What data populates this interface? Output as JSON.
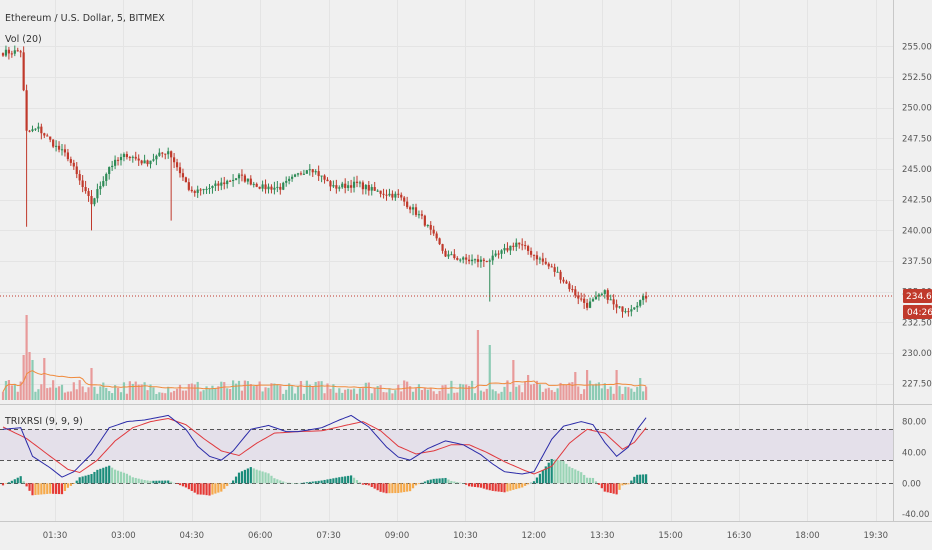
{
  "symbol_title": "Ethereum / U.S. Dollar, 5, BITMEX",
  "volume_label": "Vol (20)",
  "osc_label": "TRIXRSI (9, 9, 9)",
  "colors": {
    "up": "#2e8b57",
    "down": "#c0392b",
    "vol_up": "#8ccbb4",
    "vol_down": "#e89a9a",
    "vol_ma": "#f08a3c",
    "fast_line": "#2b2ba8",
    "slow_line": "#e0393e",
    "hist_up_strong": "#1a8c7a",
    "hist_up_weak": "#99d4b5",
    "hist_down_strong": "#e53935",
    "hist_down_weak": "#f6a94a",
    "price_line": "#c0392b",
    "band_fill": "#e4e0ea"
  },
  "current_price": {
    "value": "234.65",
    "countdown": "04:26"
  },
  "chart_data": [
    {
      "type": "candlestick",
      "title": "Ethereum / U.S. Dollar, 5, BITMEX",
      "x_ticks": [
        "01:30",
        "03:00",
        "04:30",
        "06:00",
        "07:30",
        "09:00",
        "10:30",
        "12:00",
        "13:30",
        "15:00",
        "16:30",
        "18:00",
        "19:30"
      ],
      "y_ticks": [
        "255.00",
        "252.50",
        "250.00",
        "247.50",
        "245.00",
        "242.50",
        "240.00",
        "237.50",
        "235.00",
        "232.50",
        "230.00",
        "227.50"
      ],
      "ylim": [
        226.5,
        256.5
      ],
      "current_price": 234.65,
      "close_anchors": [
        [
          0,
          254.5
        ],
        [
          6,
          254.6
        ],
        [
          8,
          248
        ],
        [
          12,
          248.3
        ],
        [
          18,
          246.8
        ],
        [
          22,
          246.0
        ],
        [
          28,
          243.0
        ],
        [
          30,
          242.2
        ],
        [
          36,
          245.2
        ],
        [
          42,
          246.2
        ],
        [
          48,
          245.5
        ],
        [
          56,
          246.5
        ],
        [
          64,
          243.0
        ],
        [
          72,
          243.6
        ],
        [
          80,
          244.4
        ],
        [
          88,
          243.5
        ],
        [
          94,
          243.5
        ],
        [
          104,
          245.2
        ],
        [
          112,
          243.5
        ],
        [
          120,
          243.8
        ],
        [
          126,
          243.2
        ],
        [
          134,
          242.8
        ],
        [
          142,
          241.0
        ],
        [
          150,
          238.0
        ],
        [
          156,
          237.6
        ],
        [
          162,
          237.5
        ],
        [
          166,
          237.7
        ],
        [
          174,
          239.0
        ],
        [
          180,
          238.0
        ],
        [
          188,
          236.5
        ],
        [
          194,
          234.8
        ],
        [
          198,
          233.9
        ],
        [
          204,
          234.9
        ],
        [
          208,
          233.6
        ],
        [
          212,
          233.6
        ],
        [
          218,
          234.6
        ]
      ],
      "candle_count": 219,
      "wick_noise": 0.5,
      "spikes": [
        {
          "i": 8,
          "low": 240.3
        },
        {
          "i": 30,
          "low": 240.0
        },
        {
          "i": 57,
          "low": 240.8
        },
        {
          "i": 165,
          "low": 234.2
        }
      ]
    },
    {
      "type": "bar",
      "title": "Vol (20)",
      "ylim": [
        0,
        100
      ],
      "base": 6,
      "spikes": [
        {
          "i": 8,
          "v": 85
        },
        {
          "i": 7,
          "v": 45
        },
        {
          "i": 9,
          "v": 48
        },
        {
          "i": 10,
          "v": 40
        },
        {
          "i": 14,
          "v": 42
        },
        {
          "i": 30,
          "v": 32
        },
        {
          "i": 161,
          "v": 70
        },
        {
          "i": 165,
          "v": 55
        },
        {
          "i": 173,
          "v": 40
        },
        {
          "i": 178,
          "v": 25
        },
        {
          "i": 194,
          "v": 28
        },
        {
          "i": 198,
          "v": 30
        },
        {
          "i": 208,
          "v": 30
        },
        {
          "i": 216,
          "v": 22
        }
      ],
      "ma_values": [
        10,
        10,
        10
      ]
    },
    {
      "type": "line",
      "title": "TRIXRSI (9, 9, 9)",
      "y_ticks": [
        "80.00",
        "40.00",
        "0.00",
        "-40.00"
      ],
      "ylim": [
        -45,
        95
      ],
      "levels": [
        70,
        30,
        0
      ],
      "fast_anchors": [
        [
          0,
          70
        ],
        [
          6,
          72
        ],
        [
          10,
          35
        ],
        [
          16,
          20
        ],
        [
          20,
          8
        ],
        [
          24,
          15
        ],
        [
          30,
          38
        ],
        [
          36,
          72
        ],
        [
          42,
          80
        ],
        [
          48,
          82
        ],
        [
          56,
          88
        ],
        [
          62,
          70
        ],
        [
          66,
          48
        ],
        [
          70,
          35
        ],
        [
          74,
          30
        ],
        [
          78,
          42
        ],
        [
          84,
          70
        ],
        [
          90,
          75
        ],
        [
          96,
          67
        ],
        [
          100,
          67
        ],
        [
          108,
          72
        ],
        [
          114,
          82
        ],
        [
          118,
          88
        ],
        [
          124,
          73
        ],
        [
          130,
          47
        ],
        [
          134,
          34
        ],
        [
          138,
          30
        ],
        [
          144,
          45
        ],
        [
          150,
          55
        ],
        [
          156,
          50
        ],
        [
          162,
          37
        ],
        [
          166,
          25
        ],
        [
          170,
          15
        ],
        [
          176,
          12
        ],
        [
          180,
          15
        ],
        [
          186,
          57
        ],
        [
          190,
          74
        ],
        [
          196,
          80
        ],
        [
          200,
          76
        ],
        [
          204,
          53
        ],
        [
          208,
          35
        ],
        [
          212,
          47
        ],
        [
          215,
          70
        ],
        [
          218,
          85
        ]
      ],
      "slow_anchors": [
        [
          0,
          73
        ],
        [
          8,
          58
        ],
        [
          16,
          35
        ],
        [
          22,
          18
        ],
        [
          26,
          14
        ],
        [
          32,
          30
        ],
        [
          38,
          55
        ],
        [
          44,
          72
        ],
        [
          50,
          80
        ],
        [
          56,
          84
        ],
        [
          62,
          76
        ],
        [
          68,
          58
        ],
        [
          74,
          42
        ],
        [
          80,
          36
        ],
        [
          86,
          52
        ],
        [
          92,
          65
        ],
        [
          100,
          67
        ],
        [
          108,
          68
        ],
        [
          116,
          75
        ],
        [
          122,
          80
        ],
        [
          128,
          68
        ],
        [
          134,
          48
        ],
        [
          140,
          38
        ],
        [
          146,
          42
        ],
        [
          152,
          50
        ],
        [
          158,
          50
        ],
        [
          164,
          40
        ],
        [
          170,
          28
        ],
        [
          176,
          18
        ],
        [
          180,
          12
        ],
        [
          186,
          22
        ],
        [
          192,
          52
        ],
        [
          198,
          70
        ],
        [
          204,
          65
        ],
        [
          210,
          44
        ],
        [
          214,
          53
        ],
        [
          218,
          72
        ]
      ]
    }
  ]
}
